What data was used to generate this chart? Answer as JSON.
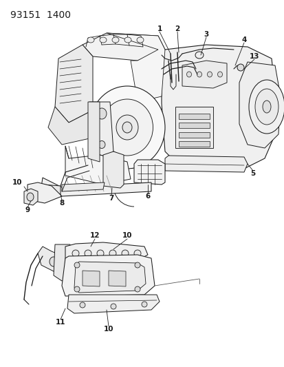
{
  "title": "93151  1400",
  "bg_color": "#ffffff",
  "line_color": "#1a1a1a",
  "figsize": [
    4.14,
    5.33
  ],
  "dpi": 100,
  "title_fontsize": 10,
  "label_fontsize": 7.5
}
